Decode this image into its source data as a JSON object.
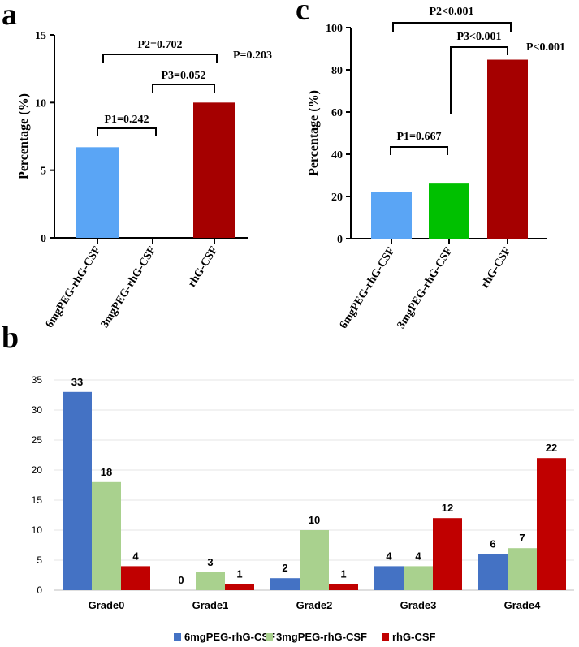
{
  "panels": {
    "a": "a",
    "b": "b",
    "c": "c"
  },
  "chart_data": [
    {
      "id": "a",
      "type": "bar",
      "ylabel": "Percentage (%)",
      "ylim": [
        0,
        15
      ],
      "yticks": [
        "0",
        "5",
        "10",
        "15"
      ],
      "categories": [
        "6mgPEG-rhG-CSF",
        "3mgPEG-rhG-CSF",
        "rhG-CSF"
      ],
      "values": [
        6.7,
        0,
        10
      ],
      "colors": [
        "#5aa5f5",
        "#00c000",
        "#a50000"
      ],
      "annotations": {
        "p1": "P1=0.242",
        "p2": "P2=0.702",
        "p3": "P3=0.052",
        "overall": "P=0.203"
      }
    },
    {
      "id": "c",
      "type": "bar",
      "ylabel": "Percentage (%)",
      "ylim": [
        0,
        100
      ],
      "yticks": [
        "0",
        "20",
        "40",
        "60",
        "80",
        "100"
      ],
      "categories": [
        "6mgPEG-rhG-CSF",
        "3mgPEG-rhG-CSF",
        "rhG-CSF"
      ],
      "values": [
        22.2,
        26.1,
        84.8
      ],
      "colors": [
        "#5aa5f5",
        "#00c000",
        "#a50000"
      ],
      "annotations": {
        "p1": "P1=0.667",
        "p2": "P2<0.001",
        "p3": "P3<0.001",
        "overall": "P<0.001"
      }
    },
    {
      "id": "b",
      "type": "bar",
      "ylim": [
        0,
        35
      ],
      "yticks": [
        "0",
        "5",
        "10",
        "15",
        "20",
        "25",
        "30",
        "35"
      ],
      "categories": [
        "Grade0",
        "Grade1",
        "Grade2",
        "Grade3",
        "Grade4"
      ],
      "series": [
        {
          "name": "6mgPEG-rhG-CSF",
          "values": [
            33,
            0,
            2,
            4,
            6
          ],
          "labels": [
            "33",
            "0",
            "2",
            "4",
            "6"
          ],
          "color": "#4472c4"
        },
        {
          "name": "3mgPEG-rhG-CSF",
          "values": [
            18,
            3,
            10,
            4,
            7
          ],
          "labels": [
            "18",
            "3",
            "10",
            "4",
            "7"
          ],
          "color": "#a9d18e"
        },
        {
          "name": "rhG-CSF",
          "values": [
            4,
            1,
            1,
            12,
            22
          ],
          "labels": [
            "4",
            "1",
            "1",
            "12",
            "22"
          ],
          "color": "#c00000"
        }
      ],
      "legend": "bottom"
    }
  ]
}
